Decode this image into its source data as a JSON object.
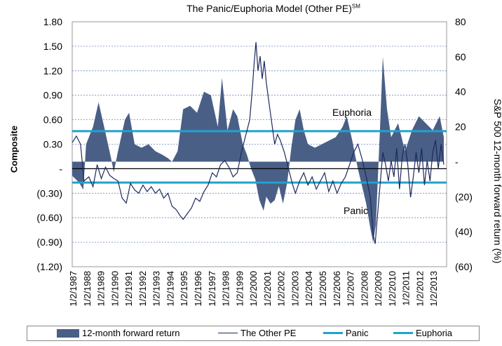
{
  "chart_data": {
    "type": "area-line",
    "title": "The Panic/Euphoria Model (Other PE)",
    "title_superscript": "SM",
    "ylabel_left": "Composite",
    "ylabel_right": "S&P 500 12-month forward return (%)",
    "ylim_left": [
      -1.2,
      1.8
    ],
    "ylim_right": [
      -60,
      80
    ],
    "yticks_left": [
      "1.80",
      "1.50",
      "1.20",
      "0.90",
      "0.60",
      "0.30",
      "-",
      "(0.30)",
      "(0.60)",
      "(0.90)",
      "(1.20)"
    ],
    "yticks_right": [
      "80",
      "60",
      "40",
      "20",
      "-",
      "(20)",
      "(40)",
      "(60)"
    ],
    "x_categories": [
      "1/2/1987",
      "1/2/1988",
      "1/2/1989",
      "1/2/1990",
      "1/2/1991",
      "1/2/1992",
      "1/2/1993",
      "1/2/1994",
      "1/2/1995",
      "1/2/1996",
      "1/2/1997",
      "1/2/1998",
      "1/2/1999",
      "1/2/2000",
      "1/2/2001",
      "1/2/2002",
      "1/2/2003",
      "1/2/2004",
      "1/2/2005",
      "1/2/2006",
      "1/2/2007",
      "1/2/2008",
      "1/2/2009",
      "1/2/2010",
      "1/2/2011",
      "1/2/2012",
      "1/2/2013"
    ],
    "x_start_year": 1987.0,
    "x_end_year": 2014.0,
    "euphoria_level": 0.46,
    "panic_level": -0.17,
    "euphoria_label": "Euphoria",
    "panic_label": "Panic",
    "forward_return": [
      [
        1987.0,
        -8
      ],
      [
        1987.5,
        -12
      ],
      [
        1987.8,
        -16
      ],
      [
        1988.0,
        10
      ],
      [
        1988.5,
        20
      ],
      [
        1988.9,
        34
      ],
      [
        1989.3,
        20
      ],
      [
        1989.8,
        2
      ],
      [
        1990.0,
        -6
      ],
      [
        1990.3,
        6
      ],
      [
        1990.8,
        24
      ],
      [
        1991.1,
        28
      ],
      [
        1991.5,
        10
      ],
      [
        1992.0,
        8
      ],
      [
        1992.5,
        10
      ],
      [
        1993.0,
        6
      ],
      [
        1993.5,
        4
      ],
      [
        1993.9,
        2
      ],
      [
        1994.2,
        0
      ],
      [
        1994.6,
        6
      ],
      [
        1995.0,
        30
      ],
      [
        1995.5,
        32
      ],
      [
        1996.0,
        28
      ],
      [
        1996.5,
        40
      ],
      [
        1997.0,
        38
      ],
      [
        1997.5,
        20
      ],
      [
        1997.8,
        48
      ],
      [
        1998.2,
        18
      ],
      [
        1998.6,
        30
      ],
      [
        1998.9,
        26
      ],
      [
        1999.3,
        10
      ],
      [
        1999.6,
        4
      ],
      [
        1999.9,
        -4
      ],
      [
        2000.2,
        -10
      ],
      [
        2000.5,
        -22
      ],
      [
        2000.8,
        -28
      ],
      [
        2001.0,
        -20
      ],
      [
        2001.3,
        -24
      ],
      [
        2001.6,
        -22
      ],
      [
        2001.9,
        -14
      ],
      [
        2002.2,
        -24
      ],
      [
        2002.5,
        -12
      ],
      [
        2002.8,
        8
      ],
      [
        2003.1,
        24
      ],
      [
        2003.4,
        30
      ],
      [
        2003.7,
        18
      ],
      [
        2004.0,
        10
      ],
      [
        2004.5,
        8
      ],
      [
        2005.0,
        10
      ],
      [
        2005.5,
        12
      ],
      [
        2006.0,
        14
      ],
      [
        2006.5,
        20
      ],
      [
        2006.8,
        26
      ],
      [
        2007.2,
        12
      ],
      [
        2007.6,
        -4
      ],
      [
        2007.9,
        -14
      ],
      [
        2008.2,
        -24
      ],
      [
        2008.5,
        -38
      ],
      [
        2008.7,
        -46
      ],
      [
        2008.9,
        -36
      ],
      [
        2009.2,
        20
      ],
      [
        2009.4,
        60
      ],
      [
        2009.7,
        30
      ],
      [
        2010.0,
        14
      ],
      [
        2010.5,
        22
      ],
      [
        2011.0,
        6
      ],
      [
        2011.5,
        18
      ],
      [
        2012.0,
        26
      ],
      [
        2012.5,
        22
      ],
      [
        2013.0,
        18
      ],
      [
        2013.5,
        26
      ],
      [
        2013.8,
        14
      ]
    ],
    "other_pe": [
      [
        1987.0,
        0.32
      ],
      [
        1987.3,
        0.4
      ],
      [
        1987.6,
        0.3
      ],
      [
        1987.85,
        -0.15
      ],
      [
        1988.2,
        -0.1
      ],
      [
        1988.5,
        -0.22
      ],
      [
        1988.8,
        0.05
      ],
      [
        1989.1,
        -0.12
      ],
      [
        1989.4,
        0.02
      ],
      [
        1989.7,
        -0.08
      ],
      [
        1990.0,
        -0.12
      ],
      [
        1990.3,
        -0.15
      ],
      [
        1990.6,
        -0.36
      ],
      [
        1990.9,
        -0.42
      ],
      [
        1991.2,
        -0.18
      ],
      [
        1991.5,
        -0.26
      ],
      [
        1991.8,
        -0.3
      ],
      [
        1992.1,
        -0.2
      ],
      [
        1992.4,
        -0.28
      ],
      [
        1992.7,
        -0.22
      ],
      [
        1993.0,
        -0.3
      ],
      [
        1993.3,
        -0.25
      ],
      [
        1993.6,
        -0.36
      ],
      [
        1993.9,
        -0.3
      ],
      [
        1994.2,
        -0.46
      ],
      [
        1994.5,
        -0.5
      ],
      [
        1994.8,
        -0.58
      ],
      [
        1995.0,
        -0.62
      ],
      [
        1995.3,
        -0.55
      ],
      [
        1995.6,
        -0.48
      ],
      [
        1995.9,
        -0.36
      ],
      [
        1996.2,
        -0.4
      ],
      [
        1996.5,
        -0.28
      ],
      [
        1996.8,
        -0.2
      ],
      [
        1997.1,
        -0.05
      ],
      [
        1997.4,
        -0.1
      ],
      [
        1997.7,
        0.05
      ],
      [
        1998.0,
        0.1
      ],
      [
        1998.3,
        0.02
      ],
      [
        1998.6,
        -0.1
      ],
      [
        1998.9,
        -0.05
      ],
      [
        1999.2,
        0.2
      ],
      [
        1999.5,
        0.4
      ],
      [
        1999.8,
        0.6
      ],
      [
        2000.0,
        1.0
      ],
      [
        2000.1,
        1.25
      ],
      [
        2000.25,
        1.55
      ],
      [
        2000.4,
        1.2
      ],
      [
        2000.55,
        1.38
      ],
      [
        2000.7,
        1.1
      ],
      [
        2000.85,
        1.32
      ],
      [
        2001.0,
        1.05
      ],
      [
        2001.2,
        0.8
      ],
      [
        2001.4,
        0.55
      ],
      [
        2001.6,
        0.3
      ],
      [
        2001.8,
        0.42
      ],
      [
        2002.0,
        0.35
      ],
      [
        2002.3,
        0.2
      ],
      [
        2002.6,
        0.0
      ],
      [
        2002.9,
        -0.2
      ],
      [
        2003.1,
        -0.3
      ],
      [
        2003.4,
        -0.15
      ],
      [
        2003.7,
        -0.05
      ],
      [
        2004.0,
        -0.2
      ],
      [
        2004.3,
        -0.1
      ],
      [
        2004.6,
        -0.25
      ],
      [
        2004.9,
        -0.15
      ],
      [
        2005.2,
        -0.05
      ],
      [
        2005.5,
        -0.28
      ],
      [
        2005.8,
        -0.15
      ],
      [
        2006.1,
        -0.3
      ],
      [
        2006.4,
        -0.18
      ],
      [
        2006.7,
        -0.1
      ],
      [
        2007.0,
        0.05
      ],
      [
        2007.3,
        0.2
      ],
      [
        2007.6,
        0.3
      ],
      [
        2007.9,
        0.12
      ],
      [
        2008.2,
        -0.1
      ],
      [
        2008.5,
        -0.35
      ],
      [
        2008.7,
        -0.8
      ],
      [
        2008.85,
        -0.92
      ],
      [
        2009.0,
        -0.6
      ],
      [
        2009.2,
        -0.2
      ],
      [
        2009.4,
        0.2
      ],
      [
        2009.6,
        0.05
      ],
      [
        2009.8,
        -0.15
      ],
      [
        2010.0,
        0.1
      ],
      [
        2010.2,
        -0.1
      ],
      [
        2010.4,
        0.25
      ],
      [
        2010.6,
        -0.25
      ],
      [
        2010.8,
        0.15
      ],
      [
        2011.0,
        0.3
      ],
      [
        2011.2,
        0.05
      ],
      [
        2011.4,
        -0.35
      ],
      [
        2011.6,
        -0.1
      ],
      [
        2011.8,
        0.2
      ],
      [
        2012.0,
        -0.05
      ],
      [
        2012.2,
        0.25
      ],
      [
        2012.4,
        -0.2
      ],
      [
        2012.6,
        0.1
      ],
      [
        2012.8,
        -0.15
      ],
      [
        2013.0,
        0.2
      ],
      [
        2013.2,
        0.35
      ],
      [
        2013.4,
        0.0
      ],
      [
        2013.6,
        0.3
      ],
      [
        2013.8,
        0.05
      ]
    ]
  },
  "legend": {
    "forward_return": "12-month forward return",
    "other_pe": "The Other PE",
    "panic": "Panic",
    "euphoria": "Euphoria"
  },
  "colors": {
    "area": "#4a5f86",
    "line": "#1c2a5c",
    "threshold": "#1fa3cc",
    "grid": "#6b86c9"
  }
}
